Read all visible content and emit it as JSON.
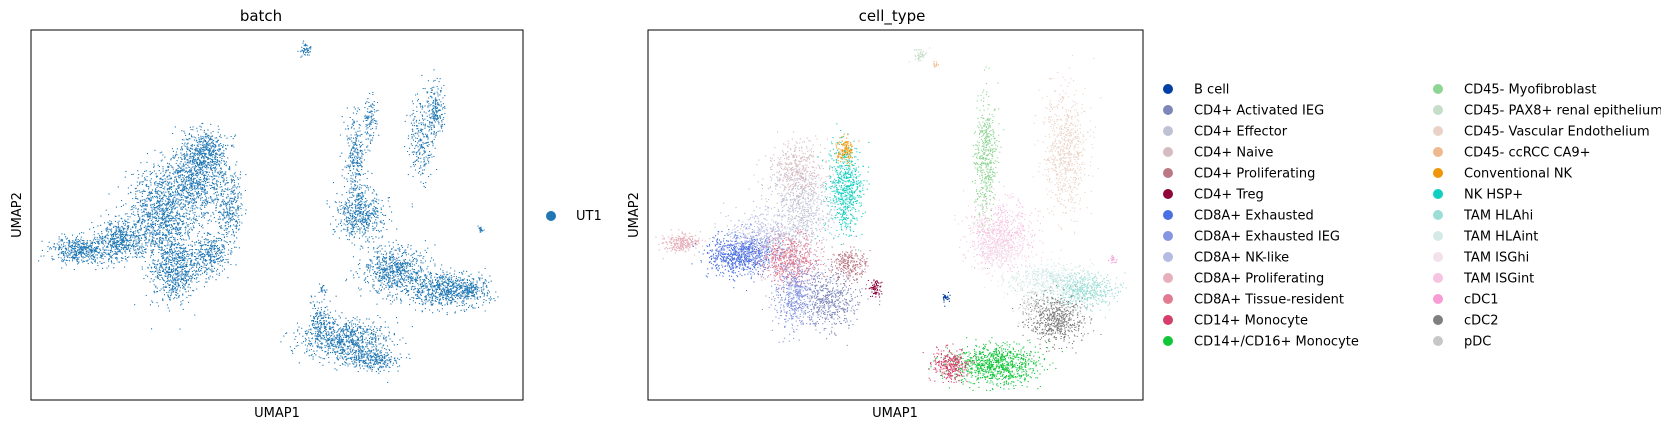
{
  "chart_data": [
    {
      "type": "scatter",
      "title": "batch",
      "xlabel": "UMAP1",
      "ylabel": "UMAP2",
      "grid": false,
      "ticks": false,
      "legend_placement": "right",
      "series": [
        {
          "name": "UT1",
          "color": "#1f77b4"
        }
      ]
    },
    {
      "type": "scatter",
      "title": "cell_type",
      "xlabel": "UMAP1",
      "ylabel": "UMAP2",
      "grid": false,
      "ticks": false,
      "legend_placement": "right",
      "legend_columns": 2,
      "series": [
        {
          "name": "B cell",
          "color": "#023fa5"
        },
        {
          "name": "CD4+ Activated IEG",
          "color": "#7d87b9"
        },
        {
          "name": "CD4+ Effector",
          "color": "#bec1d4"
        },
        {
          "name": "CD4+ Naive",
          "color": "#d6bcc0"
        },
        {
          "name": "CD4+ Proliferating",
          "color": "#bb7784"
        },
        {
          "name": "CD4+ Treg",
          "color": "#8e063b"
        },
        {
          "name": "CD8A+ Exhausted",
          "color": "#4a6fe3"
        },
        {
          "name": "CD8A+ Exhausted IEG",
          "color": "#8595e1"
        },
        {
          "name": "CD8A+ NK-like",
          "color": "#b5bbe3"
        },
        {
          "name": "CD8A+ Proliferating",
          "color": "#e6afb9"
        },
        {
          "name": "CD8A+ Tissue-resident",
          "color": "#e07b91"
        },
        {
          "name": "CD14+ Monocyte",
          "color": "#d33f6a"
        },
        {
          "name": "CD14+/CD16+ Monocyte",
          "color": "#11c638"
        },
        {
          "name": "CD45- Myofibroblast",
          "color": "#8dd593"
        },
        {
          "name": "CD45- PAX8+ renal epithelium",
          "color": "#c6dec7"
        },
        {
          "name": "CD45- Vascular Endothelium",
          "color": "#ead3c6"
        },
        {
          "name": "CD45- ccRCC CA9+",
          "color": "#f0b98d"
        },
        {
          "name": "Conventional NK",
          "color": "#ef9708"
        },
        {
          "name": "NK HSP+",
          "color": "#0fcfc0"
        },
        {
          "name": "TAM HLAhi",
          "color": "#9cded6"
        },
        {
          "name": "TAM HLAint",
          "color": "#d5eae7"
        },
        {
          "name": "TAM ISGhi",
          "color": "#f3e1eb"
        },
        {
          "name": "TAM ISGint",
          "color": "#f6c4e1"
        },
        {
          "name": "cDC1",
          "color": "#f79cd4"
        },
        {
          "name": "cDC2",
          "color": "#7f7f7f"
        },
        {
          "name": "pDC",
          "color": "#c7c7c7"
        }
      ]
    }
  ]
}
